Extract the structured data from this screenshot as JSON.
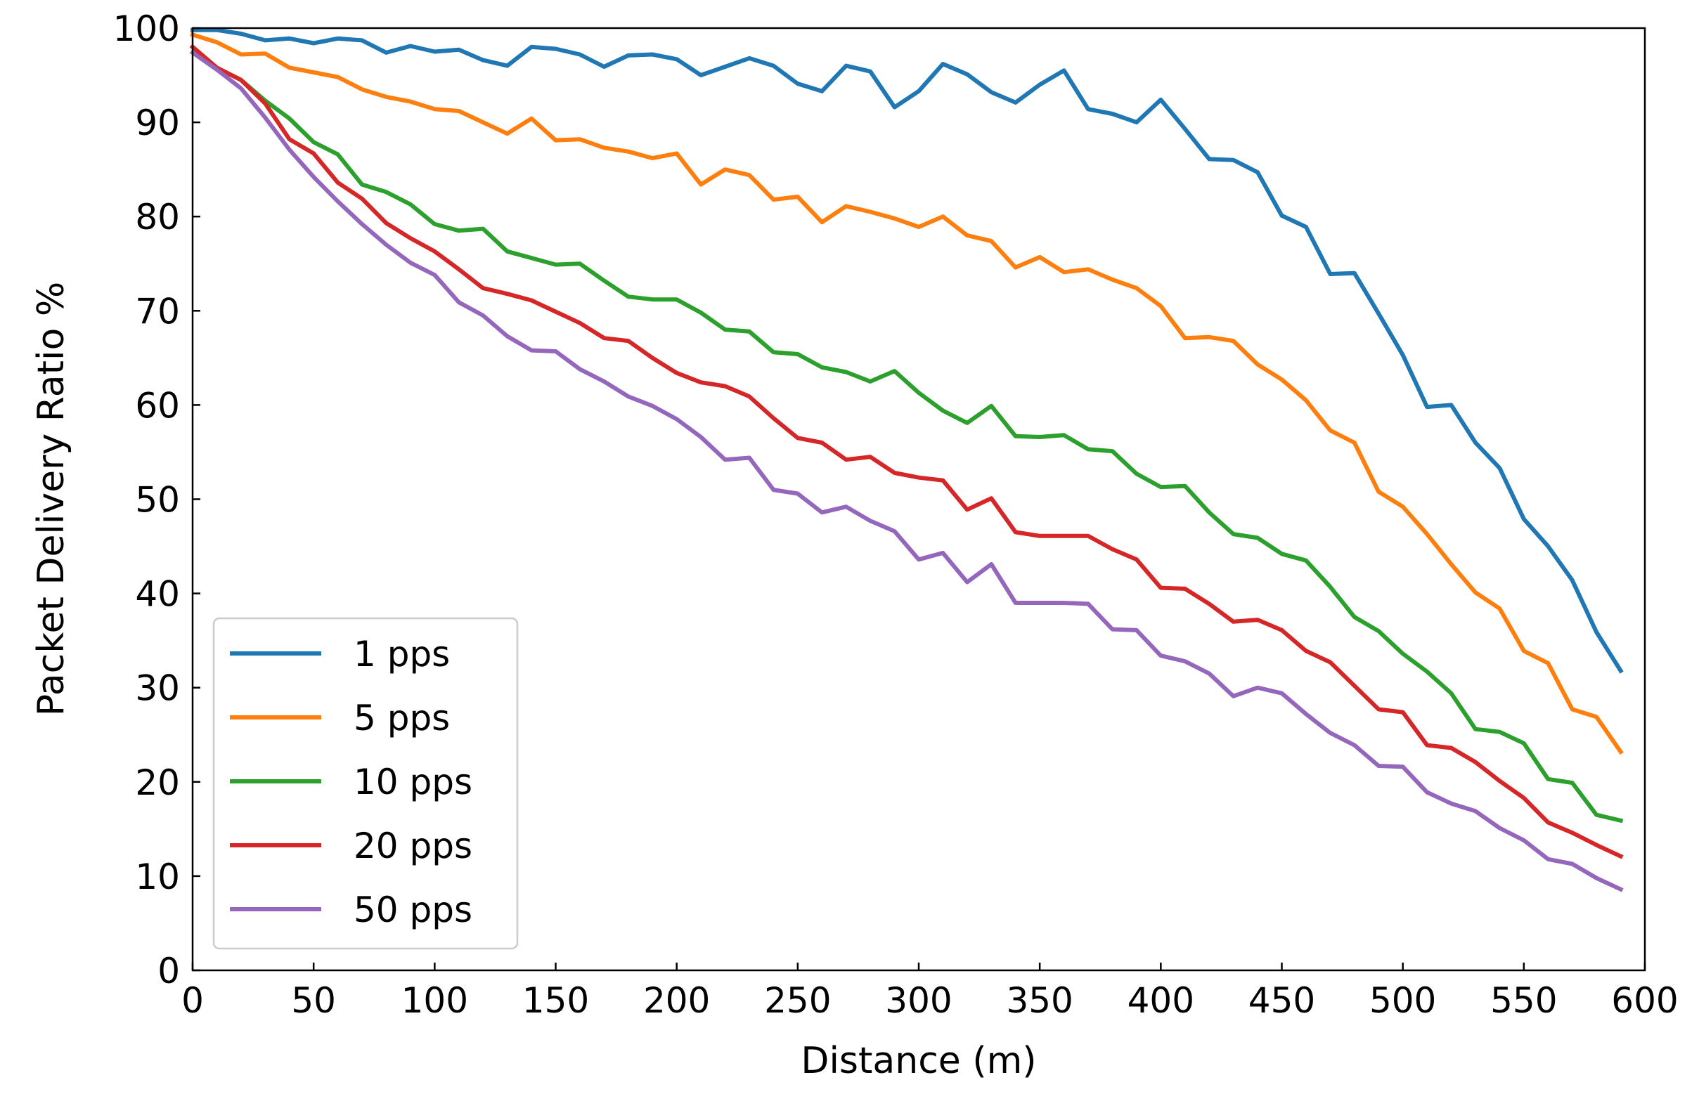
{
  "chart_data": {
    "type": "line",
    "title": "",
    "xlabel": "Distance (m)",
    "ylabel": "Packet Delivery Ratio %",
    "xlim": [
      0,
      600
    ],
    "ylim": [
      0,
      100
    ],
    "xticks": [
      0,
      50,
      100,
      150,
      200,
      250,
      300,
      350,
      400,
      450,
      500,
      550,
      600
    ],
    "yticks": [
      0,
      10,
      20,
      30,
      40,
      50,
      60,
      70,
      80,
      90,
      100
    ],
    "grid": false,
    "legend_position": "bottom-left",
    "x": [
      0,
      10,
      20,
      30,
      40,
      50,
      60,
      70,
      80,
      90,
      100,
      110,
      120,
      130,
      140,
      150,
      160,
      170,
      180,
      190,
      200,
      210,
      220,
      230,
      240,
      250,
      260,
      270,
      280,
      290,
      300,
      310,
      320,
      330,
      340,
      350,
      360,
      370,
      380,
      390,
      400,
      410,
      420,
      430,
      440,
      450,
      460,
      470,
      480,
      490,
      500,
      510,
      520,
      530,
      540,
      550,
      560,
      570,
      580,
      590
    ],
    "series": [
      {
        "name": "1 pps",
        "color": "#1f77b4",
        "values": [
          99.8,
          99.8,
          99.4,
          98.7,
          98.9,
          98.4,
          98.9,
          98.7,
          97.4,
          98.1,
          97.5,
          97.7,
          96.6,
          96.0,
          98.0,
          97.8,
          97.2,
          95.9,
          97.1,
          97.2,
          96.7,
          95.0,
          95.9,
          96.8,
          96.0,
          94.1,
          93.3,
          96.0,
          95.4,
          91.6,
          93.3,
          96.2,
          95.1,
          93.2,
          92.1,
          94.0,
          95.5,
          91.4,
          90.9,
          90.0,
          92.4,
          89.3,
          86.1,
          86.0,
          84.7,
          80.1,
          78.9,
          73.9,
          74.0,
          69.7,
          65.3,
          59.8,
          60.0,
          56.0,
          53.3,
          47.9,
          45.0,
          41.4,
          35.9,
          31.8
        ]
      },
      {
        "name": "5 pps",
        "color": "#ff7f0e",
        "values": [
          99.3,
          98.5,
          97.2,
          97.3,
          95.8,
          95.3,
          94.8,
          93.5,
          92.7,
          92.2,
          91.4,
          91.2,
          90.0,
          88.8,
          90.4,
          88.1,
          88.2,
          87.3,
          86.9,
          86.2,
          86.7,
          83.4,
          85.0,
          84.4,
          81.8,
          82.1,
          79.4,
          81.1,
          80.5,
          79.8,
          78.9,
          80.0,
          78.0,
          77.4,
          74.6,
          75.7,
          74.1,
          74.4,
          73.3,
          72.4,
          70.5,
          67.1,
          67.2,
          66.8,
          64.3,
          62.7,
          60.5,
          57.3,
          56.0,
          50.8,
          49.2,
          46.3,
          43.1,
          40.1,
          38.4,
          33.9,
          32.6,
          27.7,
          26.9,
          23.2
        ]
      },
      {
        "name": "10 pps",
        "color": "#2ca02c",
        "values": [
          98.0,
          95.8,
          94.5,
          92.3,
          90.4,
          87.9,
          86.6,
          83.4,
          82.6,
          81.3,
          79.2,
          78.5,
          78.7,
          76.3,
          75.6,
          74.9,
          75.0,
          73.2,
          71.5,
          71.2,
          71.2,
          69.8,
          68.0,
          67.8,
          65.6,
          65.4,
          64.0,
          63.5,
          62.5,
          63.6,
          61.3,
          59.4,
          58.1,
          59.9,
          56.7,
          56.6,
          56.8,
          55.3,
          55.1,
          52.7,
          51.3,
          51.4,
          48.6,
          46.3,
          45.9,
          44.2,
          43.5,
          40.7,
          37.5,
          36.0,
          33.6,
          31.7,
          29.4,
          25.6,
          25.3,
          24.1,
          20.3,
          19.9,
          16.5,
          15.9
        ]
      },
      {
        "name": "20 pps",
        "color": "#d62728",
        "values": [
          98.0,
          95.8,
          94.5,
          92.0,
          88.2,
          86.7,
          83.6,
          81.9,
          79.3,
          77.7,
          76.3,
          74.4,
          72.4,
          71.8,
          71.1,
          69.9,
          68.7,
          67.1,
          66.8,
          65.0,
          63.4,
          62.4,
          62.0,
          60.9,
          58.6,
          56.5,
          56.0,
          54.2,
          54.5,
          52.8,
          52.3,
          52.0,
          48.9,
          50.1,
          46.5,
          46.1,
          46.1,
          46.1,
          44.7,
          43.6,
          40.6,
          40.5,
          38.9,
          37.0,
          37.2,
          36.1,
          33.9,
          32.7,
          30.2,
          27.7,
          27.4,
          23.9,
          23.6,
          22.1,
          20.1,
          18.3,
          15.7,
          14.6,
          13.3,
          12.1
        ]
      },
      {
        "name": "50 pps",
        "color": "#9467bd",
        "values": [
          97.4,
          95.6,
          93.6,
          90.5,
          87.1,
          84.2,
          81.6,
          79.2,
          77.0,
          75.1,
          73.8,
          70.9,
          69.5,
          67.3,
          65.8,
          65.7,
          63.8,
          62.5,
          60.9,
          59.9,
          58.5,
          56.6,
          54.2,
          54.4,
          51.0,
          50.6,
          48.6,
          49.2,
          47.7,
          46.6,
          43.6,
          44.3,
          41.2,
          43.1,
          39.0,
          39.0,
          39.0,
          38.9,
          36.2,
          36.1,
          33.4,
          32.8,
          31.5,
          29.1,
          30.0,
          29.4,
          27.2,
          25.2,
          23.9,
          21.7,
          21.6,
          18.9,
          17.7,
          16.9,
          15.1,
          13.8,
          11.8,
          11.3,
          9.8,
          8.6
        ]
      }
    ]
  }
}
